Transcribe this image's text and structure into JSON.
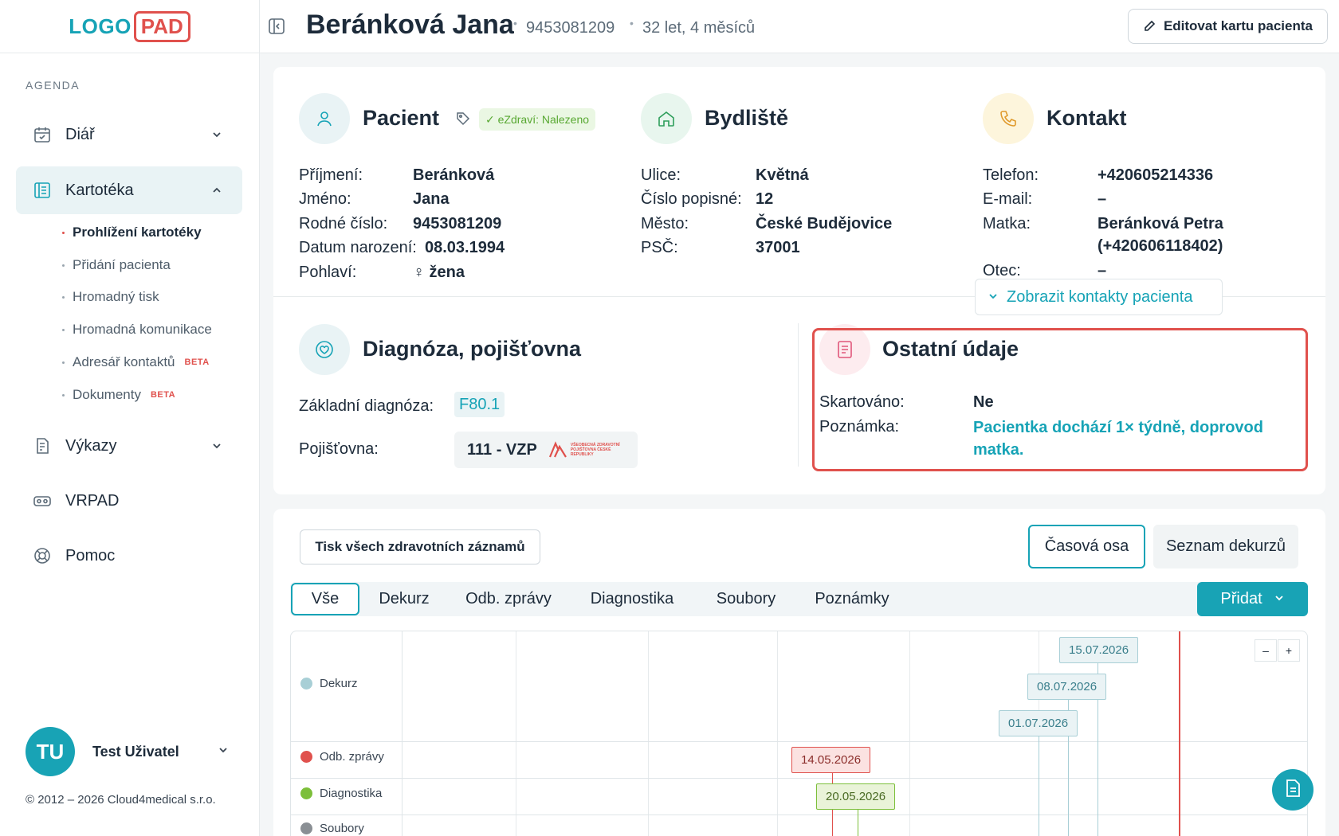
{
  "logo": {
    "part1": "LOGO",
    "part2": "PAD"
  },
  "nav": {
    "section": "AGENDA",
    "diar": "Diář",
    "kartoteka": "Kartotéka",
    "sub": [
      {
        "label": "Prohlížení kartotéky",
        "beta": ""
      },
      {
        "label": "Přidání pacienta",
        "beta": ""
      },
      {
        "label": "Hromadný tisk",
        "beta": ""
      },
      {
        "label": "Hromadná komunikace",
        "beta": ""
      },
      {
        "label": "Adresář kontaktů",
        "beta": "BETA"
      },
      {
        "label": "Dokumenty",
        "beta": "BETA"
      }
    ],
    "vykazy": "Výkazy",
    "vrpad": "VRPAD",
    "pomoc": "Pomoc"
  },
  "user": {
    "initials": "TU",
    "name": "Test Uživatel"
  },
  "copyright": "© 2012 – 2026 Cloud4medical s.r.o.",
  "header": {
    "name": "Beránková Jana",
    "birth_number": "9453081209",
    "age": "32 let, 4 měsíců",
    "edit_label": "Editovat kartu pacienta"
  },
  "patient": {
    "title": "Pacient",
    "ezdravi": "✓ eZdraví: Nalezeno",
    "labels": {
      "surname": "Příjmení:",
      "first": "Jméno:",
      "rc": "Rodné číslo:",
      "dob": "Datum narození:",
      "sex": "Pohlaví:"
    },
    "values": {
      "surname": "Beránková",
      "first": "Jana",
      "rc": "9453081209",
      "dob": "08.03.1994",
      "sex": "♀ žena"
    }
  },
  "address": {
    "title": "Bydliště",
    "labels": {
      "street": "Ulice:",
      "number": "Číslo popisné:",
      "city": "Město:",
      "zip": "PSČ:"
    },
    "values": {
      "street": "Květná",
      "number": "12",
      "city": "České Budějovice",
      "zip": "37001"
    }
  },
  "contact": {
    "title": "Kontakt",
    "labels": {
      "phone": "Telefon:",
      "email": "E-mail:",
      "mother": "Matka:",
      "father": "Otec:"
    },
    "values": {
      "phone": "+420605214336",
      "email": "–",
      "mother1": "Beránková Petra",
      "mother2": "(+420606118402)",
      "father": "–"
    },
    "show_contacts": "Zobrazit kontakty pacienta"
  },
  "diagnosis": {
    "title": "Diagnóza, pojišťovna",
    "labels": {
      "diag": "Základní diagnóza:",
      "insurer": "Pojišťovna:"
    },
    "diag_code": "F80.1",
    "insurer": "111 - VZP",
    "vzp_logo_text": "VŠEOBECNÁ ZDRAVOTNÍ POJIŠŤOVNA ČESKÉ REPUBLIKY"
  },
  "other": {
    "title": "Ostatní údaje",
    "labels": {
      "shred": "Skartováno:",
      "note": "Poznámka:"
    },
    "shred": "Ne",
    "note": "Pacientka dochází 1× týdně, doprovod matka."
  },
  "records": {
    "print_all": "Tisk všech zdravotních záznamů",
    "view_timeline": "Časová osa",
    "view_list": "Seznam dekurzů",
    "tabs": [
      "Vše",
      "Dekurz",
      "Odb. zprávy",
      "Diagnostika",
      "Soubory",
      "Poznámky"
    ],
    "add": "Přidat"
  },
  "timeline": {
    "rows": [
      {
        "label": "Dekurz",
        "color": "#a8cfd6"
      },
      {
        "label": "Odb. zprávy",
        "color": "#e0514d"
      },
      {
        "label": "Diagnostika",
        "color": "#7cbf3a"
      },
      {
        "label": "Soubory",
        "color": "#8a8f94"
      }
    ],
    "events": [
      {
        "row": "Dekurz",
        "date": "15.07.2026"
      },
      {
        "row": "Dekurz",
        "date": "08.07.2026"
      },
      {
        "row": "Dekurz",
        "date": "01.07.2026"
      },
      {
        "row": "Odb. zprávy",
        "date": "14.05.2026"
      },
      {
        "row": "Diagnostika",
        "date": "20.05.2026"
      }
    ],
    "zoom_out": "–",
    "zoom_in": "+"
  },
  "colors": {
    "accent": "#18a3b5",
    "danger": "#e0514d",
    "success": "#7cbf3a"
  }
}
